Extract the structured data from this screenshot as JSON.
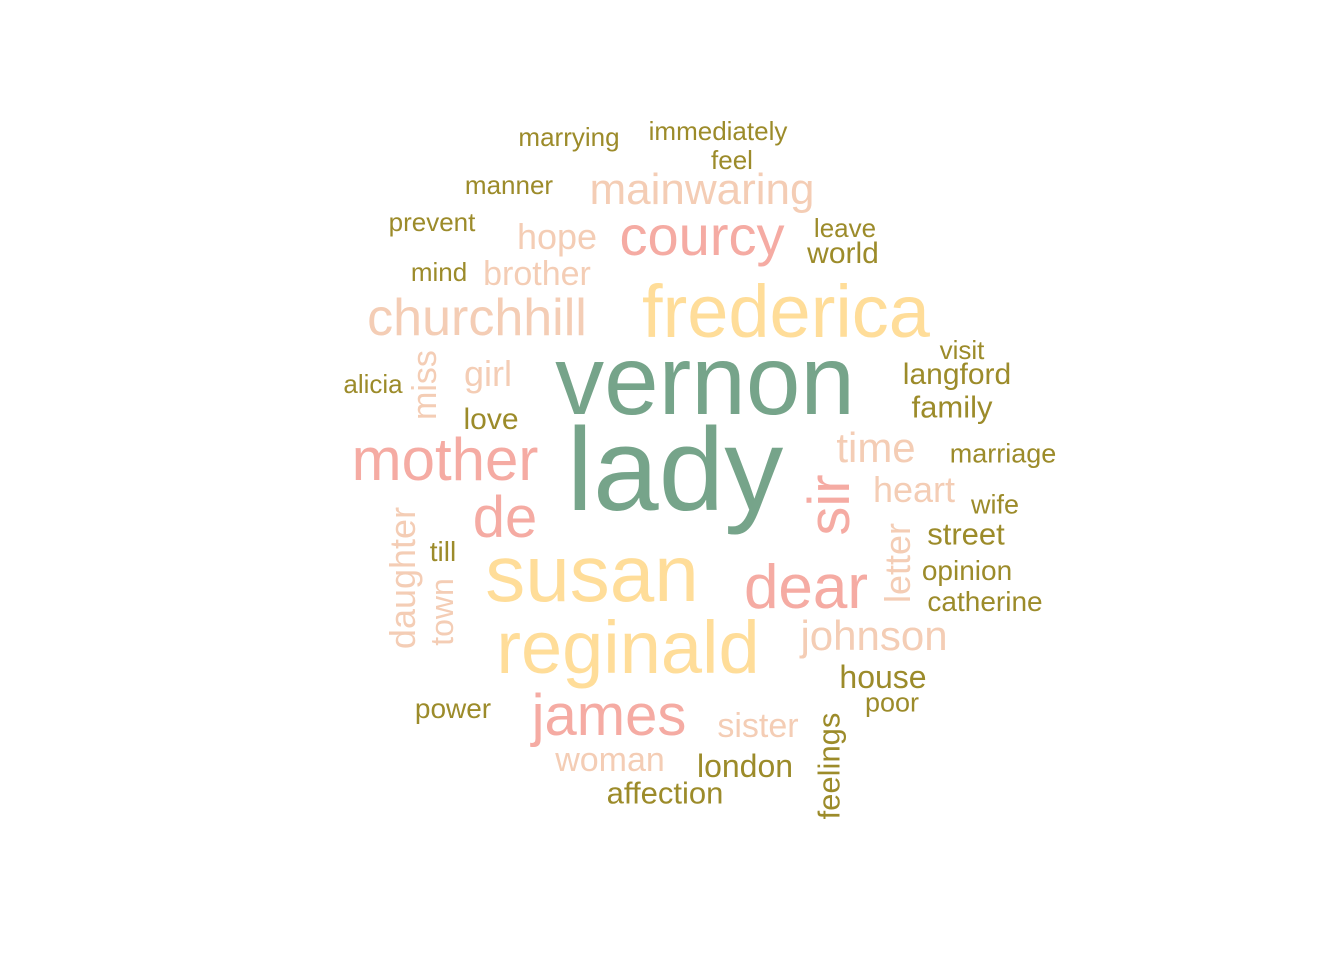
{
  "palette": {
    "tier1": "#76a48a",
    "tier2": "#ffdd99",
    "tier3": "#f5aba3",
    "tier4": "#f4cdb5",
    "tier5": "#9c8b2a"
  },
  "words": [
    {
      "text": "lady",
      "tier": 1
    },
    {
      "text": "vernon",
      "tier": 1
    },
    {
      "text": "susan",
      "tier": 2
    },
    {
      "text": "reginald",
      "tier": 2
    },
    {
      "text": "frederica",
      "tier": 2
    },
    {
      "text": "dear",
      "tier": 3
    },
    {
      "text": "mother",
      "tier": 3
    },
    {
      "text": "courcy",
      "tier": 3
    },
    {
      "text": "james",
      "tier": 3
    },
    {
      "text": "sir",
      "tier": 3
    },
    {
      "text": "de",
      "tier": 3
    },
    {
      "text": "churchhill",
      "tier": 4
    },
    {
      "text": "mainwaring",
      "tier": 4
    },
    {
      "text": "johnson",
      "tier": 4
    },
    {
      "text": "time",
      "tier": 4
    },
    {
      "text": "daughter",
      "tier": 4
    },
    {
      "text": "letter",
      "tier": 4
    },
    {
      "text": "heart",
      "tier": 4
    },
    {
      "text": "hope",
      "tier": 4
    },
    {
      "text": "brother",
      "tier": 4
    },
    {
      "text": "sister",
      "tier": 4
    },
    {
      "text": "woman",
      "tier": 4
    },
    {
      "text": "girl",
      "tier": 4
    },
    {
      "text": "miss",
      "tier": 4
    },
    {
      "text": "town",
      "tier": 4
    },
    {
      "text": "house",
      "tier": 5
    },
    {
      "text": "london",
      "tier": 5
    },
    {
      "text": "affection",
      "tier": 5
    },
    {
      "text": "feelings",
      "tier": 5
    },
    {
      "text": "street",
      "tier": 5
    },
    {
      "text": "family",
      "tier": 5
    },
    {
      "text": "langford",
      "tier": 5
    },
    {
      "text": "world",
      "tier": 5
    },
    {
      "text": "love",
      "tier": 5
    },
    {
      "text": "opinion",
      "tier": 5
    },
    {
      "text": "catherine",
      "tier": 5
    },
    {
      "text": "power",
      "tier": 5
    },
    {
      "text": "marriage",
      "tier": 5
    },
    {
      "text": "wife",
      "tier": 5
    },
    {
      "text": "poor",
      "tier": 5
    },
    {
      "text": "till",
      "tier": 5
    },
    {
      "text": "visit",
      "tier": 5
    },
    {
      "text": "leave",
      "tier": 5
    },
    {
      "text": "mind",
      "tier": 5
    },
    {
      "text": "alicia",
      "tier": 5
    },
    {
      "text": "prevent",
      "tier": 5
    },
    {
      "text": "manner",
      "tier": 5
    },
    {
      "text": "feel",
      "tier": 5
    },
    {
      "text": "marrying",
      "tier": 5
    },
    {
      "text": "immediately",
      "tier": 5
    }
  ]
}
